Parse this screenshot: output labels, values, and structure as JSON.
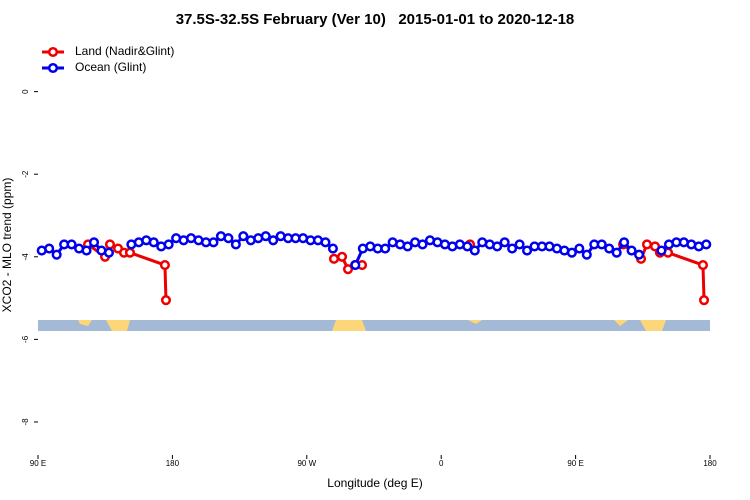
{
  "chart_data": {
    "type": "line",
    "title": "37.5S-32.5S February (Ver 10)   2015-01-01 to 2020-12-18",
    "x_label": "Longitude (deg E)",
    "y_label": "XCO2 - MLO trend (ppm)",
    "xlim": [
      90,
      540
    ],
    "ylim": [
      -8.8,
      1.25
    ],
    "xticks": [
      {
        "value": 90,
        "label": "90 E"
      },
      {
        "value": 180,
        "label": "180"
      },
      {
        "value": 270,
        "label": "90 W"
      },
      {
        "value": 360,
        "label": "0"
      },
      {
        "value": 450,
        "label": "90 E"
      },
      {
        "value": 540,
        "label": "180"
      }
    ],
    "yticks": [
      0,
      -2,
      -4,
      -6,
      -8
    ],
    "grid": false,
    "legend": "topleft",
    "series": [
      {
        "name": "Land (Nadir&Glint)",
        "color": "#ee0000",
        "x": [
          123.5,
          134.9,
          138.2,
          143.6,
          147.6,
          151.6,
          175.0,
          175.7,
          200,
          288.2,
          293.6,
          297.6,
          302.3,
          307.0,
          340,
          379.3,
          420,
          481.8,
          493.8,
          497.8,
          503.2,
          506.5,
          511.9,
          535.3,
          536.0
        ],
        "values": [
          -3.7,
          -4.0,
          -3.7,
          -3.8,
          -3.9,
          -3.9,
          -4.2,
          -5.05,
          null,
          -4.05,
          -4.0,
          -4.3,
          -4.2,
          -4.2,
          null,
          -3.7,
          null,
          -3.7,
          -4.05,
          -3.7,
          -3.75,
          -3.9,
          -3.9,
          -4.2,
          -5.05
        ]
      },
      {
        "name": "Ocean (Glint)",
        "color": "#0000ee",
        "x": [
          92.5,
          97.5,
          102.5,
          107.5,
          112.5,
          117.5,
          122.5,
          127.5,
          132.5,
          137.5,
          142.5,
          147.5,
          152.5,
          157.5,
          162.5,
          167.5,
          172.5,
          177.5,
          182.5,
          187.5,
          192.5,
          197.5,
          202.5,
          207.5,
          212.5,
          217.5,
          222.5,
          227.5,
          232.5,
          237.5,
          242.5,
          247.5,
          252.5,
          257.5,
          262.5,
          267.5,
          272.5,
          277.5,
          282.5,
          287.5,
          292.5,
          297.5,
          302.5,
          307.5,
          312.5,
          317.5,
          322.5,
          327.5,
          332.5,
          337.5,
          342.5,
          347.5,
          352.5,
          357.5,
          362.5,
          367.5,
          372.5,
          377.5,
          382.5,
          387.5,
          392.5,
          397.5,
          402.5,
          407.5,
          412.5,
          417.5,
          422.5,
          427.5,
          432.5,
          437.5,
          442.5,
          447.5,
          452.5,
          457.5,
          462.5,
          467.5,
          472.5,
          477.5,
          482.5,
          487.5,
          492.5,
          497.5,
          502.5,
          507.5,
          512.5,
          517.5,
          522.5,
          527.5,
          532.5,
          537.5
        ],
        "values": [
          -3.85,
          -3.8,
          -3.95,
          -3.7,
          -3.7,
          -3.8,
          -3.85,
          -3.65,
          -3.85,
          -3.9,
          null,
          null,
          -3.7,
          -3.65,
          -3.6,
          -3.65,
          -3.75,
          -3.7,
          -3.55,
          -3.6,
          -3.55,
          -3.6,
          -3.65,
          -3.65,
          -3.5,
          -3.55,
          -3.7,
          -3.5,
          -3.6,
          -3.55,
          -3.5,
          -3.6,
          -3.5,
          -3.55,
          -3.55,
          -3.55,
          -3.6,
          -3.6,
          -3.65,
          -3.8,
          null,
          null,
          -4.2,
          -3.8,
          -3.75,
          -3.8,
          -3.8,
          -3.65,
          -3.7,
          -3.75,
          -3.65,
          -3.7,
          -3.6,
          -3.65,
          -3.7,
          -3.75,
          -3.7,
          -3.75,
          -3.85,
          -3.65,
          -3.7,
          -3.75,
          -3.65,
          -3.8,
          -3.7,
          -3.85,
          -3.75,
          -3.75,
          -3.75,
          -3.8,
          -3.85,
          -3.9,
          -3.8,
          -3.95,
          -3.7,
          -3.7,
          -3.8,
          -3.9,
          -3.65,
          -3.85,
          -3.95,
          null,
          null,
          -3.85,
          -3.7,
          -3.65,
          -3.65,
          -3.7,
          -3.75,
          -3.7
        ]
      }
    ]
  }
}
